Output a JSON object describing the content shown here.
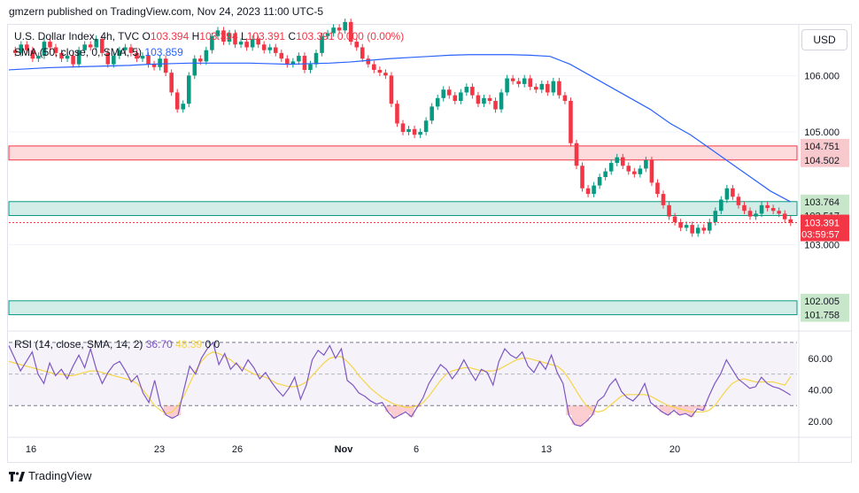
{
  "header": {
    "publisher": "gmzern published on TradingView.com, Nov 24, 2023 11:00 UTC-5"
  },
  "legend": {
    "symbol": "U.S. Dollar Index, 4h, TVC",
    "o_label": "O",
    "o": "103.394",
    "h_label": "H",
    "h": "103.394",
    "l_label": "L",
    "l": "103.391",
    "c_label": "C",
    "c": "103.391",
    "change": "0.000 (0.00%)",
    "sma_label": "SMA (50, close, 0, SMA, 5)",
    "sma_value": "103.859",
    "rsi_label": "RSI (14, close, SMA, 14, 2)",
    "rsi_value": "36.70",
    "rsi_sma_value": "48.39",
    "rsi_extra": "0  0"
  },
  "currency_button": "USD",
  "footer": {
    "brand": "TradingView"
  },
  "colors": {
    "up": "#089981",
    "down": "#f23645",
    "sma": "#2962ff",
    "rsi": "#7e57c2",
    "rsi_ma": "#f5d547",
    "resistance_zone": "#f23645",
    "support_zone": "#089981"
  },
  "chart_data": {
    "type": "candlestick",
    "symbol": "U.S. Dollar Index",
    "timeframe": "4h",
    "x_ticks": [
      "16",
      "23",
      "26",
      "Nov",
      "6",
      "13",
      "20"
    ],
    "y_ticks": [
      "106.000",
      "105.000",
      "103.000"
    ],
    "ylim": [
      101.5,
      106.9
    ],
    "zones": [
      {
        "from": 104.502,
        "to": 104.751,
        "type": "resistance",
        "labels": [
          "104.751",
          "104.502"
        ]
      },
      {
        "from": 103.517,
        "to": 103.764,
        "type": "support",
        "labels": [
          "103.764",
          "103.517"
        ]
      },
      {
        "from": 101.758,
        "to": 102.005,
        "type": "support",
        "labels": [
          "102.005",
          "101.758"
        ]
      }
    ],
    "last_price": {
      "value": 103.391,
      "label": "103.391",
      "countdown": "03:59:57"
    },
    "closes": [
      106.4,
      106.55,
      106.45,
      106.3,
      106.35,
      106.6,
      106.5,
      106.4,
      106.3,
      106.35,
      106.2,
      106.45,
      106.55,
      106.5,
      106.65,
      106.4,
      106.2,
      106.35,
      106.45,
      106.5,
      106.4,
      106.3,
      106.35,
      106.2,
      106.15,
      106.3,
      106.05,
      105.7,
      105.4,
      105.5,
      106.0,
      106.3,
      106.25,
      106.45,
      106.7,
      106.8,
      106.6,
      106.75,
      106.55,
      106.6,
      106.5,
      106.65,
      106.55,
      106.45,
      106.5,
      106.4,
      106.3,
      106.2,
      106.25,
      106.35,
      106.1,
      106.2,
      106.4,
      106.7,
      106.75,
      106.85,
      106.8,
      106.95,
      106.6,
      106.5,
      106.3,
      106.2,
      106.1,
      106.05,
      106.0,
      105.5,
      105.15,
      105.0,
      105.05,
      104.95,
      105.0,
      105.2,
      105.45,
      105.6,
      105.75,
      105.65,
      105.55,
      105.7,
      105.8,
      105.65,
      105.5,
      105.6,
      105.55,
      105.4,
      105.7,
      105.95,
      105.9,
      105.85,
      105.95,
      105.8,
      105.75,
      105.85,
      105.7,
      105.9,
      105.65,
      105.55,
      104.8,
      104.4,
      104.0,
      103.9,
      104.05,
      104.2,
      104.3,
      104.45,
      104.55,
      104.4,
      104.3,
      104.25,
      104.35,
      104.5,
      104.1,
      103.9,
      103.7,
      103.5,
      103.4,
      103.3,
      103.35,
      103.2,
      103.3,
      103.25,
      103.4,
      103.6,
      103.8,
      104.0,
      103.85,
      103.7,
      103.6,
      103.5,
      103.55,
      103.7,
      103.65,
      103.6,
      103.55,
      103.45,
      103.39
    ],
    "sma50": [
      106.1,
      106.12,
      106.14,
      106.15,
      106.16,
      106.17,
      106.18,
      106.2,
      106.21,
      106.22,
      106.22,
      106.22,
      106.22,
      106.21,
      106.2,
      106.21,
      106.22,
      106.24,
      106.27,
      106.3,
      106.32,
      106.34,
      106.36,
      106.37,
      106.37,
      106.37,
      106.36,
      106.34,
      106.2,
      106.0,
      105.8,
      105.6,
      105.4,
      105.15,
      104.95,
      104.7,
      104.45,
      104.2,
      103.95,
      103.76
    ],
    "rsi_ylim": [
      10,
      75
    ],
    "rsi_levels": [
      70,
      50,
      30
    ],
    "rsi_ticks": [
      "60.00",
      "40.00",
      "20.00"
    ],
    "rsi": [
      68,
      60,
      52,
      58,
      64,
      50,
      44,
      57,
      49,
      53,
      47,
      55,
      62,
      54,
      66,
      53,
      44,
      51,
      56,
      58,
      52,
      45,
      49,
      38,
      32,
      46,
      30,
      24,
      22,
      24,
      40,
      55,
      50,
      60,
      66,
      70,
      56,
      63,
      53,
      57,
      52,
      59,
      54,
      47,
      51,
      45,
      40,
      36,
      41,
      48,
      34,
      43,
      59,
      65,
      62,
      68,
      60,
      66,
      46,
      43,
      38,
      36,
      33,
      31,
      32,
      26,
      22,
      24,
      26,
      23,
      29,
      35,
      44,
      50,
      56,
      53,
      47,
      52,
      59,
      52,
      46,
      53,
      51,
      43,
      58,
      66,
      62,
      60,
      64,
      55,
      51,
      58,
      53,
      62,
      51,
      44,
      24,
      18,
      17,
      20,
      24,
      33,
      36,
      43,
      47,
      39,
      35,
      33,
      37,
      44,
      32,
      29,
      26,
      24,
      27,
      24,
      25,
      23,
      28,
      27,
      36,
      44,
      50,
      59,
      53,
      47,
      44,
      41,
      42,
      48,
      44,
      42,
      41,
      39,
      36.7
    ],
    "rsi_ma": [
      58,
      57,
      56,
      55,
      54,
      53,
      52,
      51,
      50,
      50,
      49,
      49,
      50,
      51,
      52,
      52,
      51,
      50,
      49,
      48,
      47,
      46,
      44,
      40,
      35,
      30,
      27,
      25,
      26,
      30,
      36,
      44,
      52,
      58,
      62,
      64,
      63,
      61,
      59,
      56,
      54,
      52,
      50,
      49,
      48,
      46,
      44,
      43,
      42,
      42,
      43,
      45,
      49,
      53,
      57,
      60,
      61,
      61,
      58,
      54,
      49,
      45,
      41,
      38,
      35,
      33,
      31,
      30,
      29,
      29,
      30,
      32,
      36,
      41,
      46,
      50,
      52,
      53,
      54,
      54,
      53,
      52,
      52,
      52,
      53,
      55,
      57,
      59,
      60,
      60,
      59,
      58,
      57,
      56,
      55,
      52,
      47,
      41,
      35,
      30,
      27,
      26,
      27,
      30,
      33,
      36,
      37,
      37,
      37,
      37,
      36,
      34,
      32,
      30,
      29,
      28,
      27,
      26,
      26,
      26,
      27,
      30,
      35,
      40,
      44,
      46,
      47,
      46,
      45,
      45,
      45,
      45,
      44,
      43,
      48.39
    ]
  }
}
